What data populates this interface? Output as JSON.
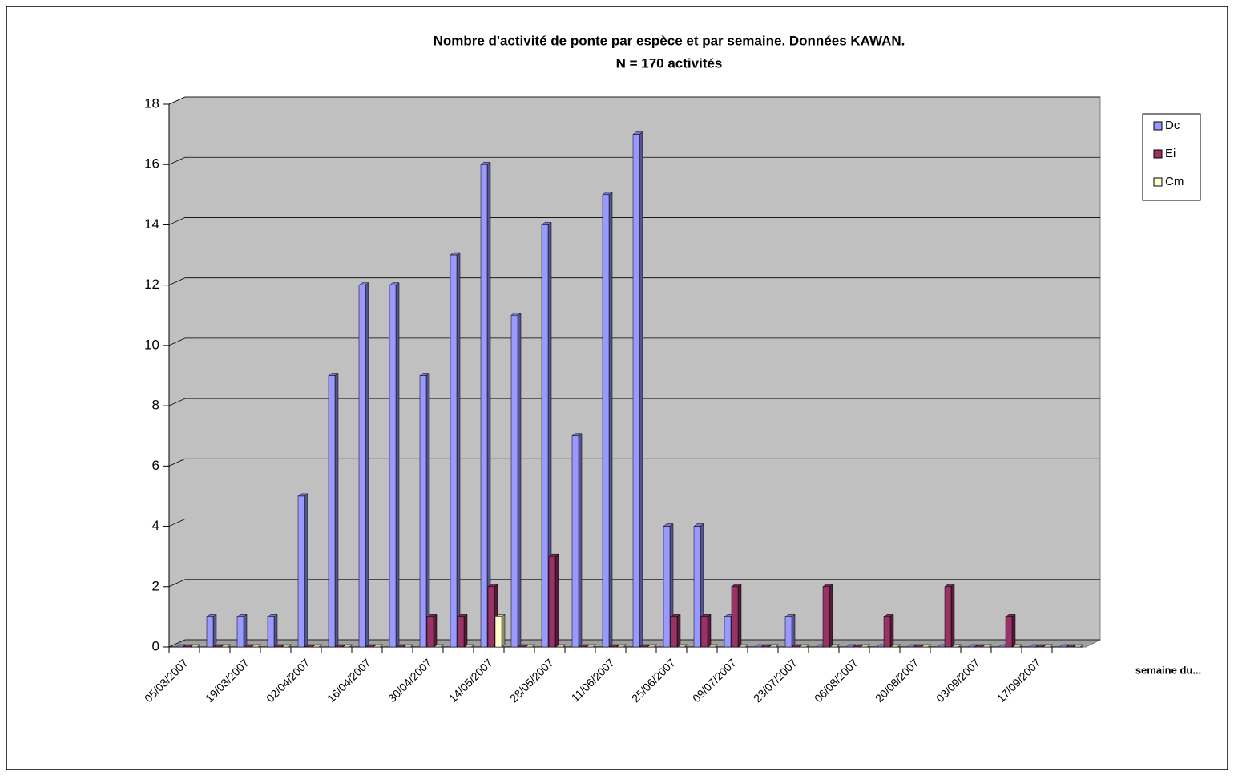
{
  "chart_data": {
    "type": "bar3d",
    "title": "Nombre d'activité de ponte par espèce et par semaine. Données KAWAN.",
    "subtitle": "N = 170 activités",
    "x_label": "semaine du...",
    "categories": [
      "05/03/2007",
      null,
      "19/03/2007",
      null,
      "02/04/2007",
      null,
      "16/04/2007",
      null,
      "30/04/2007",
      null,
      "14/05/2007",
      null,
      "28/05/2007",
      null,
      "11/06/2007",
      null,
      "25/06/2007",
      null,
      "09/07/2007",
      null,
      "23/07/2007",
      null,
      "06/08/2007",
      null,
      "20/08/2007",
      null,
      "03/09/2007",
      null,
      "17/09/2007",
      null
    ],
    "series": [
      {
        "name": "Dc",
        "color": "#9999ff",
        "values": [
          0,
          1,
          1,
          1,
          5,
          9,
          12,
          12,
          9,
          13,
          16,
          11,
          14,
          7,
          15,
          17,
          4,
          4,
          1,
          0,
          1,
          0,
          0,
          0,
          0,
          0,
          0,
          0,
          0,
          0
        ]
      },
      {
        "name": "Ei",
        "color": "#993366",
        "values": [
          0,
          0,
          0,
          0,
          0,
          0,
          0,
          0,
          1,
          1,
          2,
          0,
          3,
          0,
          0,
          0,
          1,
          1,
          2,
          0,
          0,
          2,
          0,
          1,
          0,
          2,
          0,
          1,
          0,
          0
        ]
      },
      {
        "name": "Cm",
        "color": "#ffffcc",
        "values": [
          0,
          0,
          0,
          0,
          0,
          0,
          0,
          0,
          0,
          0,
          1,
          0,
          0,
          0,
          0,
          0,
          0,
          0,
          0,
          0,
          0,
          0,
          0,
          0,
          0,
          0,
          0,
          0,
          0,
          0
        ]
      }
    ],
    "ylim": [
      0,
      18
    ],
    "yticks": [
      0,
      2,
      4,
      6,
      8,
      10,
      12,
      14,
      16,
      18
    ],
    "grid": true,
    "legend": "right"
  }
}
